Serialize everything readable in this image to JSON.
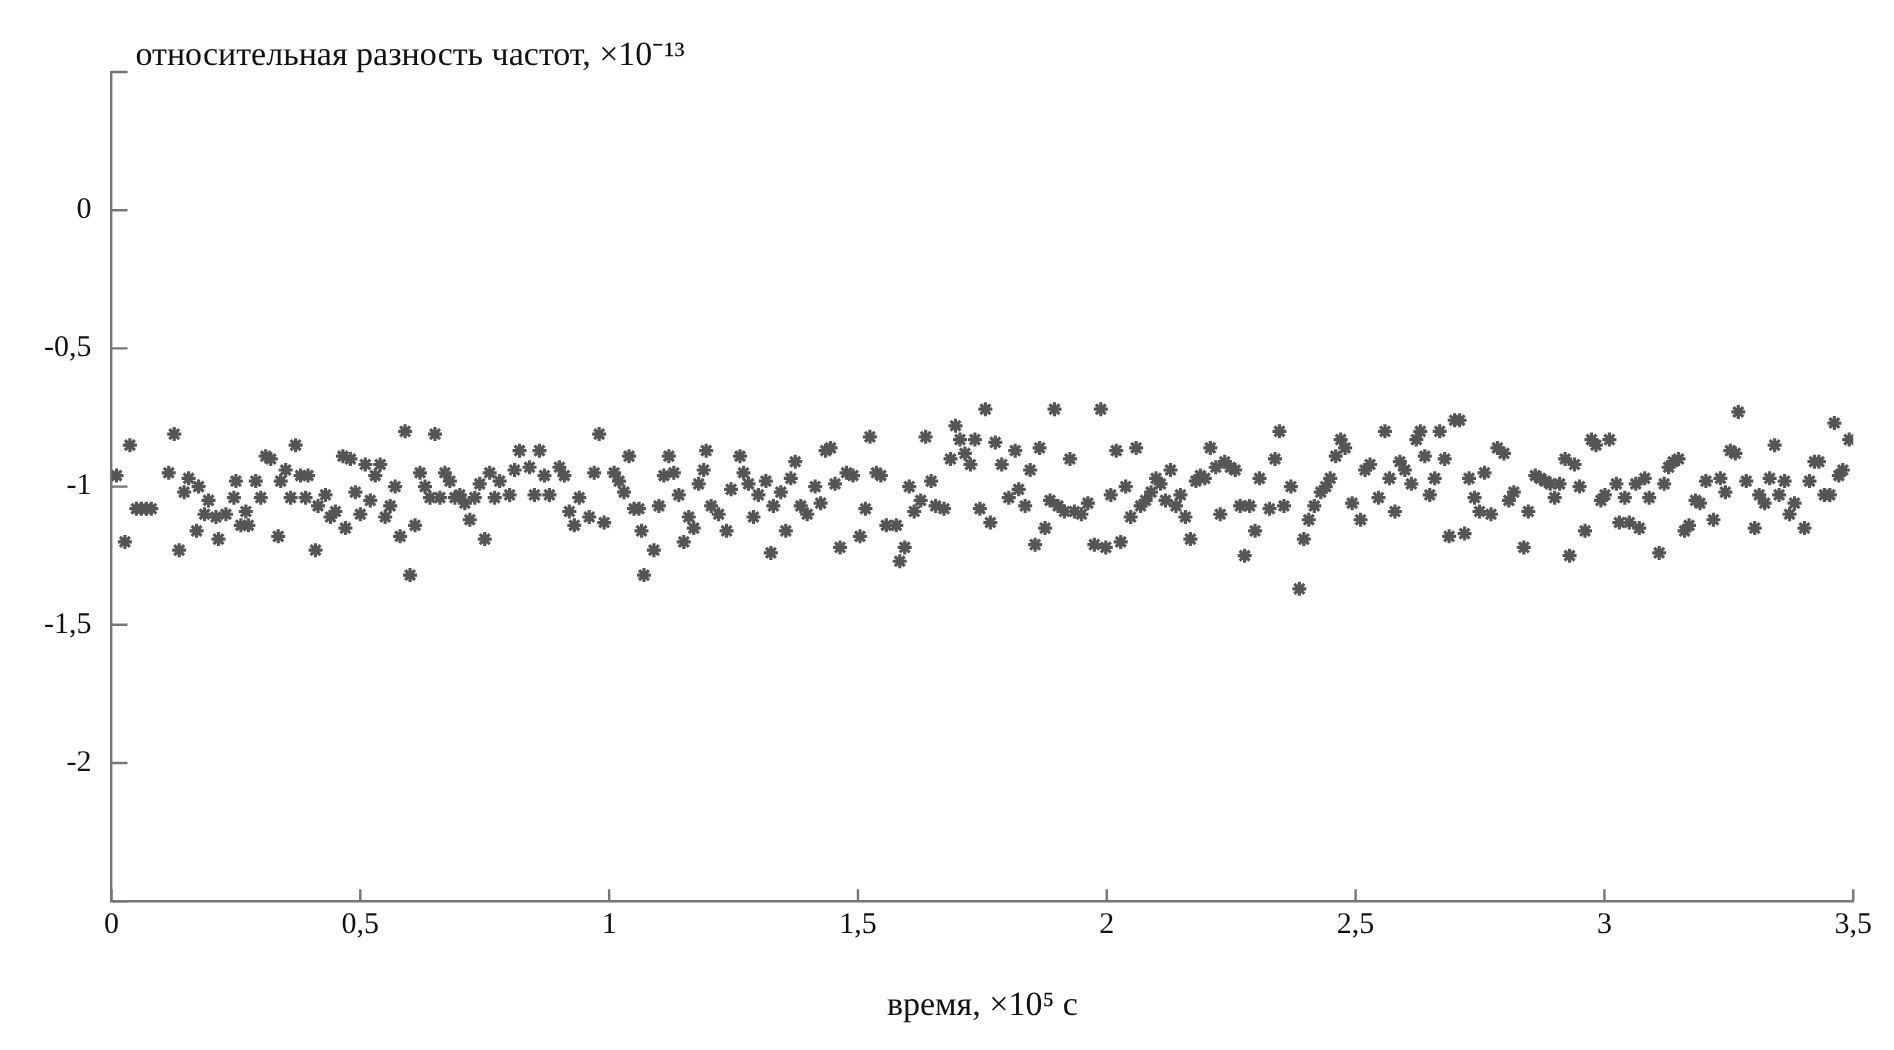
{
  "chart_data": {
    "type": "scatter",
    "ylabel": "относительная разность частот, ×10⁻¹³",
    "xlabel": "время, ×10⁵ с",
    "xlim": [
      0,
      3.5
    ],
    "ylim": [
      -2.5,
      0.5
    ],
    "xticks": [
      0,
      {
        "value": 0.5,
        "label": "0,5"
      },
      1,
      {
        "value": 1.5,
        "label": "1,5"
      },
      2,
      {
        "value": 2.5,
        "label": "2,5"
      },
      3,
      {
        "value": 3.5,
        "label": "3,5"
      }
    ],
    "yticks": [
      {
        "value": -2.5,
        "label": null
      },
      -2,
      {
        "value": -1.5,
        "label": "-1,5"
      },
      -1,
      {
        "value": -0.5,
        "label": "-0,5"
      },
      0,
      {
        "value": 0.5,
        "label": null
      }
    ],
    "marker": "cross",
    "grid": false,
    "legend": false,
    "series": [
      {
        "color": "#555555",
        "x": [
          0.01,
          0.037,
          0.027,
          0.05,
          0.06,
          0.07,
          0.08,
          0.126,
          0.115,
          0.136,
          0.155,
          0.146,
          0.175,
          0.171,
          0.195,
          0.187,
          0.215,
          0.21,
          0.23,
          0.25,
          0.246,
          0.26,
          0.275,
          0.27,
          0.29,
          0.3,
          0.31,
          0.32,
          0.34,
          0.335,
          0.35,
          0.37,
          0.36,
          0.38,
          0.395,
          0.39,
          0.41,
          0.415,
          0.43,
          0.44,
          0.45,
          0.47,
          0.465,
          0.48,
          0.49,
          0.5,
          0.51,
          0.52,
          0.53,
          0.54,
          0.55,
          0.56,
          0.57,
          0.58,
          0.59,
          0.6,
          0.61,
          0.62,
          0.63,
          0.64,
          0.65,
          0.66,
          0.67,
          0.68,
          0.69,
          0.7,
          0.71,
          0.72,
          0.73,
          0.74,
          0.75,
          0.76,
          0.77,
          0.78,
          0.8,
          0.81,
          0.82,
          0.84,
          0.85,
          0.86,
          0.87,
          0.88,
          0.9,
          0.91,
          0.92,
          0.93,
          0.94,
          0.96,
          0.97,
          0.98,
          0.99,
          1.01,
          1.02,
          1.03,
          1.04,
          1.05,
          1.06,
          1.065,
          1.07,
          1.09,
          1.1,
          1.11,
          1.12,
          1.13,
          1.14,
          1.15,
          1.16,
          1.17,
          1.18,
          1.19,
          1.195,
          1.205,
          1.22,
          1.236,
          1.245,
          1.263,
          1.27,
          1.28,
          1.29,
          1.3,
          1.315,
          1.325,
          1.33,
          1.345,
          1.355,
          1.365,
          1.374,
          1.385,
          1.398,
          1.414,
          1.425,
          1.435,
          1.445,
          1.454,
          1.464,
          1.477,
          1.49,
          1.504,
          1.515,
          1.524,
          1.537,
          1.546,
          1.557,
          1.577,
          1.584,
          1.594,
          1.603,
          1.613,
          1.626,
          1.636,
          1.647,
          1.656,
          1.673,
          1.686,
          1.696,
          1.705,
          1.715,
          1.726,
          1.735,
          1.745,
          1.756,
          1.766,
          1.776,
          1.789,
          1.803,
          1.816,
          1.823,
          1.836,
          1.846,
          1.856,
          1.865,
          1.876,
          1.886,
          1.895,
          1.902,
          1.915,
          1.926,
          1.935,
          1.949,
          1.962,
          1.975,
          1.988,
          1.998,
          2.008,
          2.019,
          2.028,
          2.038,
          2.048,
          2.059,
          2.068,
          2.078,
          2.089,
          2.099,
          2.108,
          2.118,
          2.128,
          2.139,
          2.148,
          2.158,
          2.168,
          2.179,
          2.188,
          2.197,
          2.208,
          2.219,
          2.228,
          2.237,
          2.248,
          2.258,
          2.268,
          2.277,
          2.287,
          2.298,
          2.307,
          2.327,
          2.338,
          2.347,
          2.356,
          2.37,
          2.387,
          2.396,
          2.406,
          2.417,
          2.43,
          2.44,
          2.449,
          2.46,
          2.47,
          2.479,
          2.493,
          2.51,
          2.519,
          2.529,
          2.546,
          2.559,
          2.568,
          2.579,
          2.589,
          2.599,
          2.612,
          2.622,
          2.63,
          2.639,
          2.649,
          2.659,
          2.669,
          2.679,
          2.688,
          2.699,
          2.709,
          2.719,
          2.728,
          2.739,
          2.749,
          2.759,
          2.772,
          2.785,
          2.798,
          2.808,
          2.818,
          2.838,
          2.847,
          2.861,
          2.871,
          2.881,
          2.891,
          2.9,
          2.91,
          2.921,
          2.93,
          2.94,
          2.95,
          2.961,
          2.974,
          2.983,
          2.993,
          3.001,
          3.01,
          3.024,
          3.03,
          3.041,
          3.05,
          3.063,
          3.07,
          3.081,
          3.09,
          3.11,
          3.12,
          3.129,
          3.138,
          3.149,
          3.161,
          3.17,
          3.183,
          3.192,
          3.204,
          3.219,
          3.233,
          3.243,
          3.253,
          3.263,
          3.269,
          3.285,
          3.302,
          3.311,
          3.322,
          3.332,
          3.342,
          3.351,
          3.362,
          3.372,
          3.382,
          3.402,
          3.412,
          3.422,
          3.431,
          3.442,
          3.453,
          3.462,
          3.471,
          3.479,
          3.492
        ],
        "values": [
          -0.96,
          -0.85,
          -1.2,
          -1.08,
          -1.08,
          -1.08,
          -1.08,
          -0.81,
          -0.95,
          -1.23,
          -0.97,
          -1.02,
          -1.0,
          -1.16,
          -1.05,
          -1.1,
          -1.19,
          -1.11,
          -1.1,
          -0.98,
          -1.04,
          -1.14,
          -1.14,
          -1.09,
          -0.98,
          -1.04,
          -0.89,
          -0.9,
          -0.98,
          -1.18,
          -0.94,
          -0.85,
          -1.04,
          -0.96,
          -0.96,
          -1.04,
          -1.23,
          -1.07,
          -1.03,
          -1.11,
          -1.09,
          -1.15,
          -0.89,
          -0.9,
          -1.02,
          -1.1,
          -0.92,
          -1.05,
          -0.96,
          -0.92,
          -1.11,
          -1.07,
          -1.0,
          -1.18,
          -0.8,
          -1.32,
          -1.14,
          -0.95,
          -1.0,
          -1.04,
          -0.81,
          -1.04,
          -0.95,
          -0.98,
          -1.04,
          -1.03,
          -1.06,
          -1.12,
          -1.04,
          -0.99,
          -1.19,
          -0.95,
          -1.04,
          -0.98,
          -1.03,
          -0.94,
          -0.87,
          -0.93,
          -1.03,
          -0.87,
          -0.96,
          -1.03,
          -0.93,
          -0.96,
          -1.09,
          -1.14,
          -1.04,
          -1.11,
          -0.95,
          -0.81,
          -1.13,
          -0.95,
          -0.98,
          -1.02,
          -0.89,
          -1.08,
          -1.08,
          -1.16,
          -1.32,
          -1.23,
          -1.07,
          -0.96,
          -0.89,
          -0.95,
          -1.03,
          -1.2,
          -1.11,
          -1.15,
          -0.99,
          -0.94,
          -0.87,
          -1.07,
          -1.1,
          -1.16,
          -1.01,
          -0.89,
          -0.95,
          -0.99,
          -1.11,
          -1.03,
          -0.98,
          -1.24,
          -1.07,
          -1.02,
          -1.16,
          -0.97,
          -0.91,
          -1.07,
          -1.1,
          -1.0,
          -1.06,
          -0.87,
          -0.86,
          -0.99,
          -1.22,
          -0.95,
          -0.96,
          -1.18,
          -1.08,
          -0.82,
          -0.95,
          -0.96,
          -1.14,
          -1.14,
          -1.27,
          -1.22,
          -1.0,
          -1.09,
          -1.05,
          -0.82,
          -0.98,
          -1.07,
          -1.08,
          -0.9,
          -0.78,
          -0.83,
          -0.88,
          -0.92,
          -0.83,
          -1.08,
          -0.72,
          -1.13,
          -0.84,
          -0.92,
          -1.04,
          -0.87,
          -1.01,
          -1.07,
          -0.94,
          -1.21,
          -0.86,
          -1.15,
          -1.05,
          -0.72,
          -1.07,
          -1.09,
          -0.9,
          -1.09,
          -1.1,
          -1.06,
          -1.21,
          -0.72,
          -1.22,
          -1.03,
          -0.87,
          -1.2,
          -1.0,
          -1.11,
          -0.86,
          -1.07,
          -1.05,
          -1.02,
          -0.97,
          -0.99,
          -1.05,
          -0.94,
          -1.07,
          -1.03,
          -1.11,
          -1.19,
          -0.98,
          -0.96,
          -0.97,
          -0.86,
          -0.93,
          -1.1,
          -0.91,
          -0.93,
          -0.94,
          -1.07,
          -1.25,
          -1.07,
          -1.16,
          -0.97,
          -1.08,
          -0.9,
          -0.8,
          -1.07,
          -1.0,
          -1.37,
          -1.19,
          -1.12,
          -1.07,
          -1.02,
          -1.0,
          -0.97,
          -0.89,
          -0.83,
          -0.86,
          -1.06,
          -1.12,
          -0.94,
          -0.92,
          -1.04,
          -0.8,
          -0.97,
          -1.09,
          -0.91,
          -0.94,
          -0.99,
          -0.83,
          -0.8,
          -0.89,
          -1.03,
          -0.97,
          -0.8,
          -0.9,
          -1.18,
          -0.76,
          -0.76,
          -1.17,
          -0.97,
          -1.04,
          -1.09,
          -0.95,
          -1.1,
          -0.86,
          -0.88,
          -1.05,
          -1.02,
          -1.22,
          -1.09,
          -0.96,
          -0.97,
          -0.98,
          -0.99,
          -1.04,
          -0.99,
          -0.9,
          -1.25,
          -0.92,
          -1.0,
          -1.16,
          -0.83,
          -0.85,
          -1.05,
          -1.03,
          -0.83,
          -0.99,
          -1.13,
          -1.04,
          -1.13,
          -0.99,
          -1.15,
          -0.97,
          -1.04,
          -1.24,
          -0.99,
          -0.93,
          -0.91,
          -0.9,
          -1.16,
          -1.14,
          -1.05,
          -1.06,
          -0.98,
          -1.12,
          -0.97,
          -1.02,
          -0.87,
          -0.88,
          -0.73,
          -0.98,
          -1.15,
          -1.03,
          -1.06,
          -0.97,
          -0.85,
          -1.03,
          -0.98,
          -1.1,
          -1.06,
          -1.15,
          -0.98,
          -0.91,
          -0.91,
          -1.03,
          -1.03,
          -0.77,
          -0.96,
          -0.94,
          -0.83
        ]
      }
    ]
  }
}
